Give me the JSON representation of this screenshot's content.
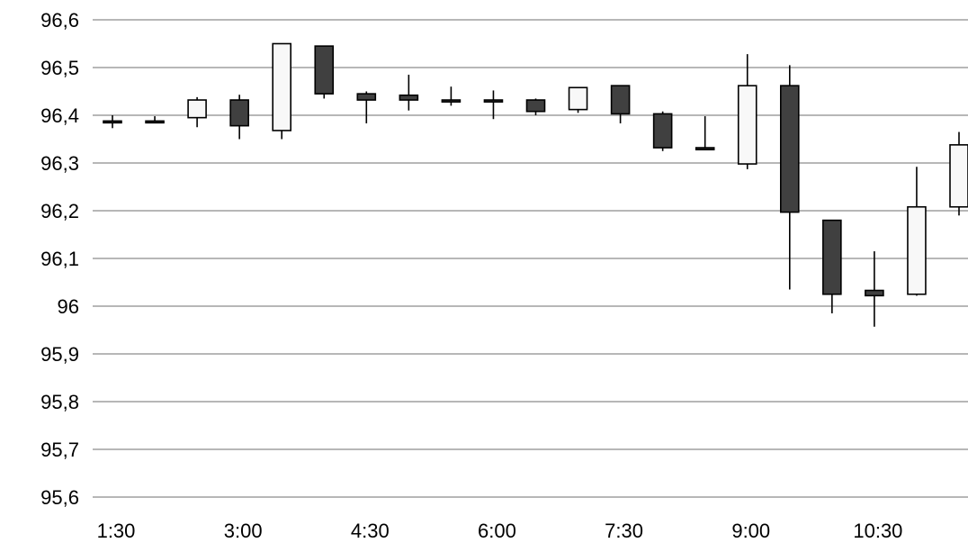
{
  "chart_data": {
    "type": "candlestick",
    "title": "",
    "xlabel": "",
    "ylabel": "",
    "ylim": [
      95.6,
      96.6
    ],
    "grid": true,
    "y_ticks": [
      "96,6",
      "96,5",
      "96,4",
      "96,3",
      "96,2",
      "96,1",
      "96",
      "95,9",
      "95,8",
      "95,7",
      "95,6"
    ],
    "y_tick_values": [
      96.6,
      96.5,
      96.4,
      96.3,
      96.2,
      96.1,
      96.0,
      95.9,
      95.8,
      95.7,
      95.6
    ],
    "x_ticks": [
      "1:30",
      "3:00",
      "4:30",
      "6:00",
      "7:30",
      "9:00",
      "10:30"
    ],
    "candles": [
      {
        "x": "1:30",
        "open": 96.388,
        "high": 96.4,
        "low": 96.373,
        "close": 96.385
      },
      {
        "x": "2:00",
        "open": 96.388,
        "high": 96.398,
        "low": 96.385,
        "close": 96.385
      },
      {
        "x": "2:30",
        "open": 96.395,
        "high": 96.438,
        "low": 96.375,
        "close": 96.432
      },
      {
        "x": "3:00",
        "open": 96.432,
        "high": 96.443,
        "low": 96.35,
        "close": 96.378
      },
      {
        "x": "3:30",
        "open": 96.368,
        "high": 96.55,
        "low": 96.35,
        "close": 96.55
      },
      {
        "x": "4:00",
        "open": 96.545,
        "high": 96.545,
        "low": 96.435,
        "close": 96.445
      },
      {
        "x": "4:30",
        "open": 96.445,
        "high": 96.45,
        "low": 96.383,
        "close": 96.432
      },
      {
        "x": "5:00",
        "open": 96.442,
        "high": 96.485,
        "low": 96.41,
        "close": 96.432
      },
      {
        "x": "5:30",
        "open": 96.432,
        "high": 96.46,
        "low": 96.42,
        "close": 96.428
      },
      {
        "x": "6:00",
        "open": 96.432,
        "high": 96.452,
        "low": 96.392,
        "close": 96.428
      },
      {
        "x": "6:30",
        "open": 96.432,
        "high": 96.435,
        "low": 96.4,
        "close": 96.408
      },
      {
        "x": "7:00",
        "open": 96.412,
        "high": 96.458,
        "low": 96.405,
        "close": 96.458
      },
      {
        "x": "7:30",
        "open": 96.462,
        "high": 96.462,
        "low": 96.383,
        "close": 96.403
      },
      {
        "x": "8:00",
        "open": 96.403,
        "high": 96.408,
        "low": 96.325,
        "close": 96.332
      },
      {
        "x": "8:30",
        "open": 96.332,
        "high": 96.398,
        "low": 96.328,
        "close": 96.328
      },
      {
        "x": "9:00",
        "open": 96.298,
        "high": 96.528,
        "low": 96.287,
        "close": 96.462
      },
      {
        "x": "9:30",
        "open": 96.462,
        "high": 96.505,
        "low": 96.035,
        "close": 96.197
      },
      {
        "x": "10:00",
        "open": 96.18,
        "high": 96.18,
        "low": 95.985,
        "close": 96.025
      },
      {
        "x": "10:30",
        "open": 96.033,
        "high": 96.115,
        "low": 95.957,
        "close": 96.022
      },
      {
        "x": "11:00",
        "open": 96.025,
        "high": 96.292,
        "low": 96.022,
        "close": 96.208
      },
      {
        "x": "11:30",
        "open": 96.208,
        "high": 96.365,
        "low": 96.19,
        "close": 96.338
      }
    ],
    "colors": {
      "up_fill": "#f8f8f8",
      "down_fill": "#404040",
      "stroke": "#000000",
      "grid": "#8c8c8c",
      "text": "#000000"
    }
  }
}
